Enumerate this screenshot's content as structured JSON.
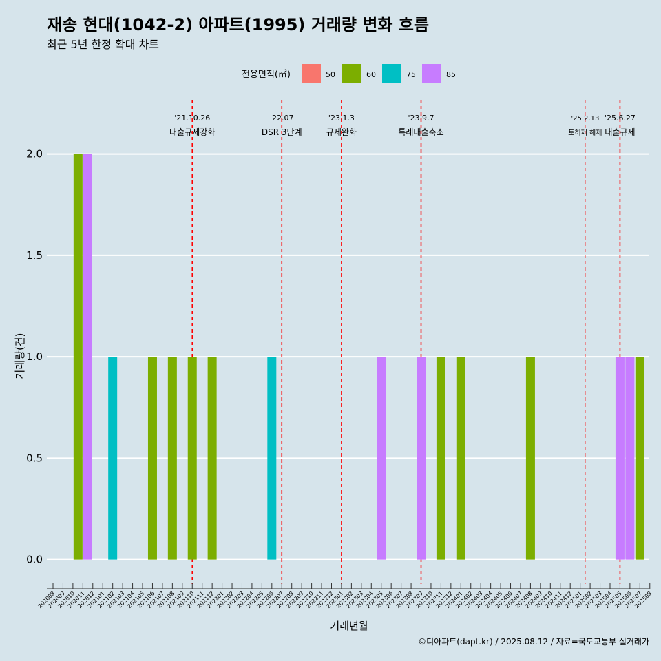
{
  "chart_data": {
    "type": "bar",
    "title": "재송 현대(1042-2) 아파트(1995) 거래량 변화 흐름",
    "subtitle": "최근 5년 한정 확대 차트",
    "xlabel": "거래년월",
    "ylabel": "거래량(건)",
    "ylim": [
      -0.12,
      2.25
    ],
    "yticks": [
      0.0,
      0.5,
      1.0,
      1.5,
      2.0
    ],
    "ytick_labels": [
      "0.0",
      "0.5",
      "1.0",
      "1.5",
      "2.0"
    ],
    "grid": true,
    "legend": {
      "position": "top",
      "title": "전용면적(㎡)",
      "entries": [
        {
          "label": "50",
          "color": "#f8766d"
        },
        {
          "label": "60",
          "color": "#7cae00"
        },
        {
          "label": "75",
          "color": "#00bfc4"
        },
        {
          "label": "85",
          "color": "#c77cff"
        }
      ]
    },
    "categories": [
      "202008",
      "202009",
      "202010",
      "202011",
      "202012",
      "202101",
      "202102",
      "202103",
      "202104",
      "202105",
      "202106",
      "202107",
      "202108",
      "202109",
      "202110",
      "202111",
      "202112",
      "202201",
      "202202",
      "202203",
      "202204",
      "202205",
      "202206",
      "202207",
      "202208",
      "202209",
      "202210",
      "202211",
      "202212",
      "202301",
      "202302",
      "202303",
      "202304",
      "202305",
      "202306",
      "202307",
      "202308",
      "202309",
      "202310",
      "202311",
      "202312",
      "202401",
      "202402",
      "202403",
      "202404",
      "202405",
      "202406",
      "202407",
      "202408",
      "202409",
      "202410",
      "202411",
      "202412",
      "202501",
      "202502",
      "202503",
      "202504",
      "202505",
      "202506",
      "202507",
      "202508"
    ],
    "bars": [
      {
        "month": "202011",
        "series": "60",
        "value": 2
      },
      {
        "month": "202011",
        "series": "85",
        "value": 2
      },
      {
        "month": "202102",
        "series": "75",
        "value": 1
      },
      {
        "month": "202106",
        "series": "60",
        "value": 1
      },
      {
        "month": "202108",
        "series": "60",
        "value": 1
      },
      {
        "month": "202110",
        "series": "60",
        "value": 1
      },
      {
        "month": "202112",
        "series": "60",
        "value": 1
      },
      {
        "month": "202206",
        "series": "75",
        "value": 1
      },
      {
        "month": "202305",
        "series": "85",
        "value": 1
      },
      {
        "month": "202309",
        "series": "85",
        "value": 1
      },
      {
        "month": "202311",
        "series": "60",
        "value": 1
      },
      {
        "month": "202401",
        "series": "60",
        "value": 1
      },
      {
        "month": "202408",
        "series": "60",
        "value": 1
      },
      {
        "month": "202505",
        "series": "85",
        "value": 1
      },
      {
        "month": "202506",
        "series": "85",
        "value": 1
      },
      {
        "month": "202507",
        "series": "60",
        "value": 1
      }
    ],
    "annotations": [
      {
        "date": "'21.10.26",
        "text": "대출규제강화",
        "x": 14.0
      },
      {
        "date": "'22.07",
        "text": "DSR 3단계",
        "x": 23.0
      },
      {
        "date": "'23.1.3",
        "text": "규제완화",
        "x": 29.0
      },
      {
        "date": "'23.9.7",
        "text": "특례대출축소",
        "x": 37.0
      },
      {
        "date": "'25.2.13",
        "text": "토허제 해제",
        "x": 53.5,
        "small": true
      },
      {
        "date": "'25.6.27",
        "text": "대출규제",
        "x": 57.0
      }
    ],
    "vline_color": "#ff0000"
  },
  "caption": "©디아파트(dapt.kr) / 2025.08.12 / 자료=국토교통부 실거래가"
}
